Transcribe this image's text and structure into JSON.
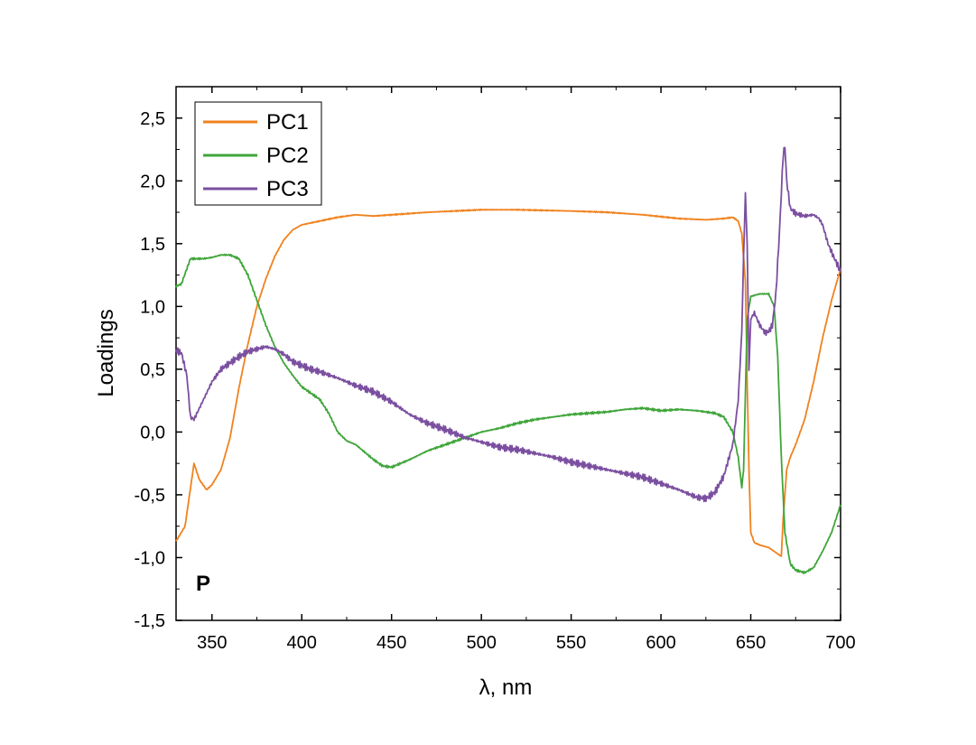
{
  "chart_data": {
    "type": "line",
    "xlabel": "λ, nm",
    "ylabel": "Loadings",
    "panel_label": "P",
    "xlim": [
      330,
      700
    ],
    "ylim": [
      -1.5,
      2.75
    ],
    "x_ticks": [
      350,
      400,
      450,
      500,
      550,
      600,
      650,
      700
    ],
    "x_tick_labels": [
      "350",
      "400",
      "450",
      "500",
      "550",
      "600",
      "650",
      "700"
    ],
    "y_ticks": [
      -1.5,
      -1.0,
      -0.5,
      0.0,
      0.5,
      1.0,
      1.5,
      2.0,
      2.5
    ],
    "y_tick_labels": [
      "-1,5",
      "-1,0",
      "-0,5",
      "0,0",
      "0,5",
      "1,0",
      "1,5",
      "2,0",
      "2,5"
    ],
    "grid": false,
    "legend_position": "top-left",
    "series": [
      {
        "name": "PC1",
        "color": "#f0821e",
        "points": [
          [
            330,
            -0.87
          ],
          [
            335,
            -0.75
          ],
          [
            338,
            -0.45
          ],
          [
            340,
            -0.25
          ],
          [
            343,
            -0.38
          ],
          [
            347,
            -0.46
          ],
          [
            350,
            -0.42
          ],
          [
            355,
            -0.3
          ],
          [
            360,
            -0.05
          ],
          [
            365,
            0.35
          ],
          [
            370,
            0.7
          ],
          [
            375,
            1.0
          ],
          [
            380,
            1.22
          ],
          [
            385,
            1.4
          ],
          [
            390,
            1.53
          ],
          [
            395,
            1.61
          ],
          [
            400,
            1.65
          ],
          [
            410,
            1.68
          ],
          [
            420,
            1.71
          ],
          [
            430,
            1.73
          ],
          [
            440,
            1.72
          ],
          [
            450,
            1.73
          ],
          [
            470,
            1.75
          ],
          [
            500,
            1.77
          ],
          [
            520,
            1.77
          ],
          [
            550,
            1.76
          ],
          [
            570,
            1.75
          ],
          [
            590,
            1.73
          ],
          [
            610,
            1.7
          ],
          [
            625,
            1.69
          ],
          [
            635,
            1.7
          ],
          [
            640,
            1.71
          ],
          [
            643,
            1.68
          ],
          [
            645,
            1.58
          ],
          [
            647,
            1.2
          ],
          [
            648,
            0.4
          ],
          [
            649,
            -0.3
          ],
          [
            650,
            -0.8
          ],
          [
            652,
            -0.88
          ],
          [
            655,
            -0.9
          ],
          [
            660,
            -0.92
          ],
          [
            665,
            -0.97
          ],
          [
            667,
            -0.99
          ],
          [
            668,
            -0.7
          ],
          [
            670,
            -0.3
          ],
          [
            672,
            -0.2
          ],
          [
            675,
            -0.1
          ],
          [
            680,
            0.1
          ],
          [
            685,
            0.4
          ],
          [
            690,
            0.75
          ],
          [
            695,
            1.05
          ],
          [
            700,
            1.3
          ]
        ]
      },
      {
        "name": "PC2",
        "color": "#3fa53a",
        "points": [
          [
            330,
            1.16
          ],
          [
            333,
            1.18
          ],
          [
            336,
            1.3
          ],
          [
            338,
            1.38
          ],
          [
            345,
            1.38
          ],
          [
            350,
            1.39
          ],
          [
            355,
            1.41
          ],
          [
            360,
            1.41
          ],
          [
            365,
            1.38
          ],
          [
            370,
            1.25
          ],
          [
            375,
            1.05
          ],
          [
            380,
            0.85
          ],
          [
            385,
            0.68
          ],
          [
            390,
            0.55
          ],
          [
            395,
            0.45
          ],
          [
            400,
            0.36
          ],
          [
            410,
            0.26
          ],
          [
            415,
            0.15
          ],
          [
            420,
            0.0
          ],
          [
            425,
            -0.07
          ],
          [
            430,
            -0.1
          ],
          [
            440,
            -0.22
          ],
          [
            445,
            -0.27
          ],
          [
            450,
            -0.28
          ],
          [
            460,
            -0.22
          ],
          [
            470,
            -0.15
          ],
          [
            480,
            -0.1
          ],
          [
            490,
            -0.05
          ],
          [
            500,
            0.0
          ],
          [
            510,
            0.03
          ],
          [
            520,
            0.07
          ],
          [
            530,
            0.1
          ],
          [
            540,
            0.12
          ],
          [
            550,
            0.14
          ],
          [
            560,
            0.15
          ],
          [
            570,
            0.16
          ],
          [
            580,
            0.18
          ],
          [
            590,
            0.19
          ],
          [
            600,
            0.17
          ],
          [
            610,
            0.18
          ],
          [
            620,
            0.17
          ],
          [
            630,
            0.15
          ],
          [
            635,
            0.12
          ],
          [
            640,
            0.0
          ],
          [
            643,
            -0.2
          ],
          [
            645,
            -0.44
          ],
          [
            646,
            -0.3
          ],
          [
            647,
            0.3
          ],
          [
            648,
            0.9
          ],
          [
            650,
            1.08
          ],
          [
            655,
            1.1
          ],
          [
            660,
            1.1
          ],
          [
            663,
            1.0
          ],
          [
            665,
            0.6
          ],
          [
            667,
            -0.2
          ],
          [
            669,
            -0.8
          ],
          [
            672,
            -1.05
          ],
          [
            675,
            -1.1
          ],
          [
            680,
            -1.12
          ],
          [
            685,
            -1.08
          ],
          [
            690,
            -0.95
          ],
          [
            695,
            -0.8
          ],
          [
            700,
            -0.58
          ]
        ]
      },
      {
        "name": "PC3",
        "color": "#7b4fa0",
        "points": [
          [
            330,
            0.65
          ],
          [
            333,
            0.63
          ],
          [
            336,
            0.45
          ],
          [
            338,
            0.12
          ],
          [
            340,
            0.1
          ],
          [
            345,
            0.25
          ],
          [
            350,
            0.4
          ],
          [
            355,
            0.5
          ],
          [
            360,
            0.55
          ],
          [
            365,
            0.6
          ],
          [
            370,
            0.64
          ],
          [
            375,
            0.66
          ],
          [
            380,
            0.68
          ],
          [
            385,
            0.66
          ],
          [
            390,
            0.62
          ],
          [
            395,
            0.56
          ],
          [
            400,
            0.53
          ],
          [
            405,
            0.5
          ],
          [
            410,
            0.48
          ],
          [
            420,
            0.43
          ],
          [
            430,
            0.37
          ],
          [
            440,
            0.32
          ],
          [
            450,
            0.24
          ],
          [
            460,
            0.14
          ],
          [
            470,
            0.07
          ],
          [
            480,
            0.02
          ],
          [
            490,
            -0.04
          ],
          [
            500,
            -0.08
          ],
          [
            510,
            -0.12
          ],
          [
            520,
            -0.14
          ],
          [
            530,
            -0.17
          ],
          [
            540,
            -0.2
          ],
          [
            550,
            -0.24
          ],
          [
            560,
            -0.27
          ],
          [
            570,
            -0.3
          ],
          [
            580,
            -0.33
          ],
          [
            590,
            -0.36
          ],
          [
            600,
            -0.41
          ],
          [
            610,
            -0.46
          ],
          [
            620,
            -0.52
          ],
          [
            625,
            -0.53
          ],
          [
            630,
            -0.48
          ],
          [
            635,
            -0.35
          ],
          [
            640,
            -0.1
          ],
          [
            643,
            0.25
          ],
          [
            645,
            0.8
          ],
          [
            646,
            1.4
          ],
          [
            647,
            1.9
          ],
          [
            648,
            1.5
          ],
          [
            649,
            0.5
          ],
          [
            650,
            0.9
          ],
          [
            652,
            0.95
          ],
          [
            655,
            0.85
          ],
          [
            658,
            0.79
          ],
          [
            660,
            0.8
          ],
          [
            662,
            0.85
          ],
          [
            664,
            1.1
          ],
          [
            666,
            1.6
          ],
          [
            668,
            2.2
          ],
          [
            669,
            2.28
          ],
          [
            670,
            2.0
          ],
          [
            672,
            1.78
          ],
          [
            675,
            1.74
          ],
          [
            680,
            1.72
          ],
          [
            685,
            1.73
          ],
          [
            688,
            1.7
          ],
          [
            690,
            1.65
          ],
          [
            693,
            1.5
          ],
          [
            696,
            1.4
          ],
          [
            700,
            1.28
          ]
        ]
      }
    ]
  }
}
